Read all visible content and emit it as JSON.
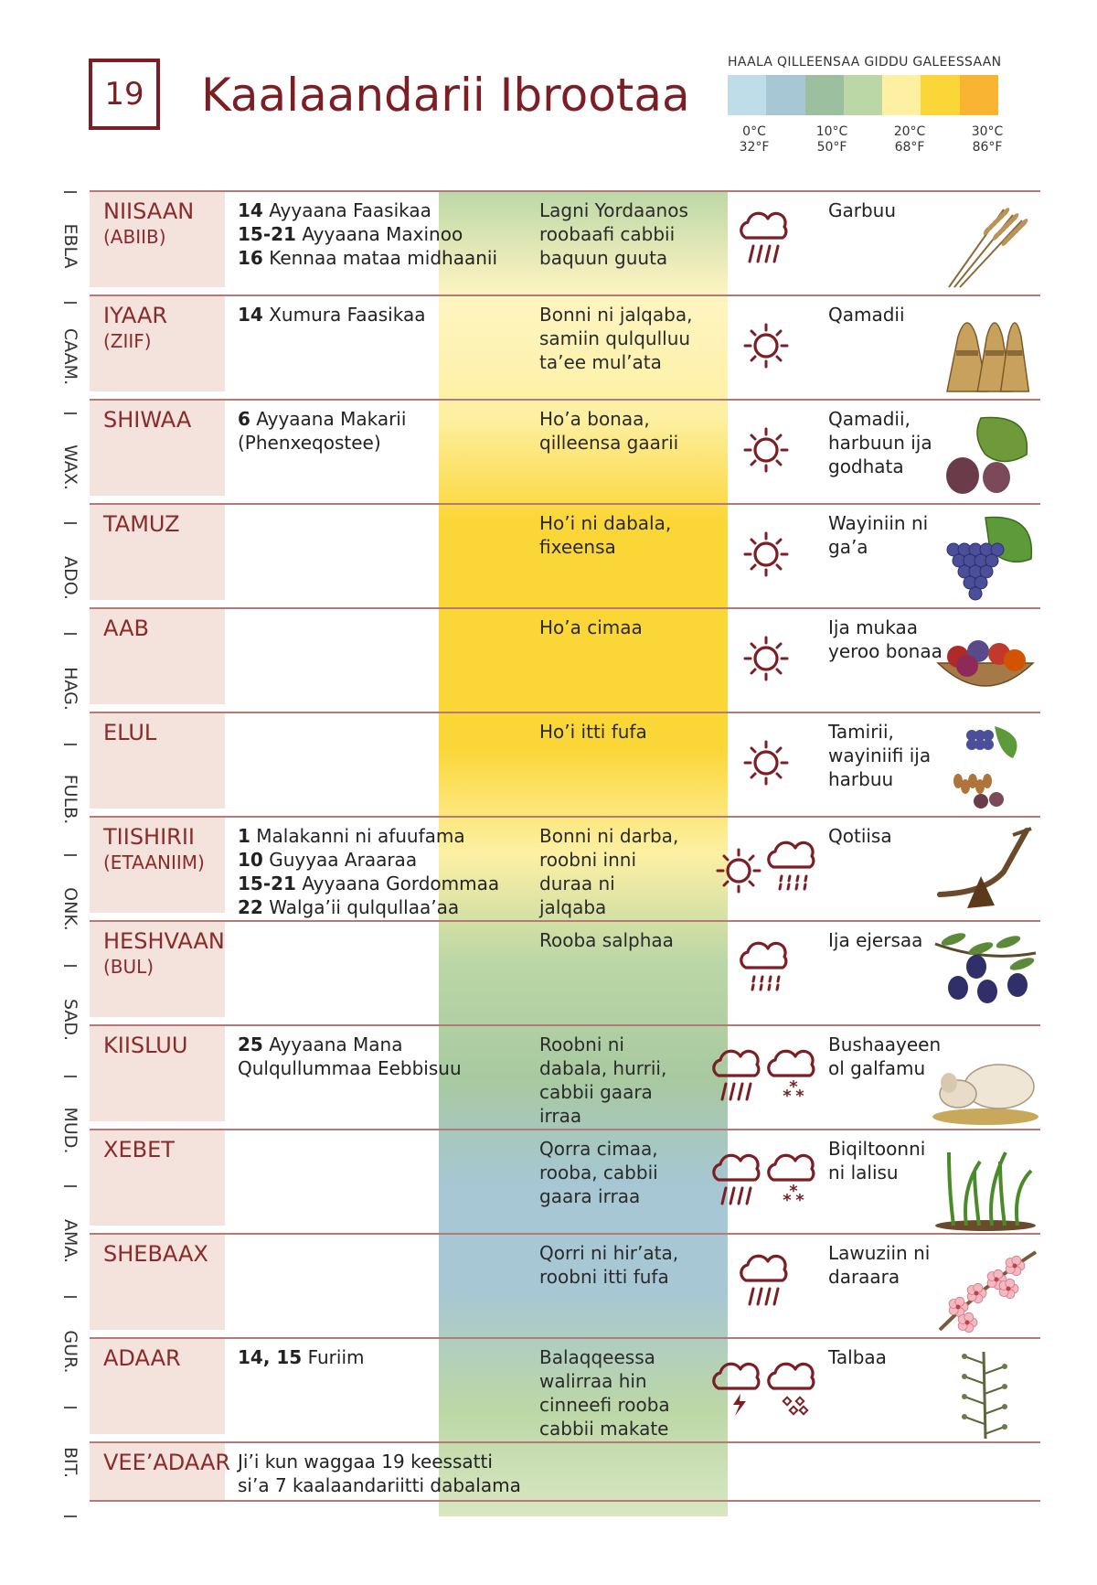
{
  "header": {
    "number": "19",
    "title": "Kaalaandarii Ibrootaa"
  },
  "legend": {
    "title": "HAALA QILLEENSAA GIDDU GALEESSAAN",
    "colors": [
      "#bfdde9",
      "#a6c7d3",
      "#9bbf9f",
      "#bcd7a6",
      "#fdf0a3",
      "#fbd637",
      "#f9b431"
    ],
    "labels": [
      {
        "c": "0°C",
        "f": "32°F"
      },
      {
        "c": "10°C",
        "f": "50°F"
      },
      {
        "c": "20°C",
        "f": "68°F"
      },
      {
        "c": "30°C",
        "f": "86°F"
      }
    ]
  },
  "side_labels": [
    "EBLA",
    "CAAM.",
    "WAX.",
    "ADO.",
    "HAG.",
    "FULB.",
    "ONK.",
    "SAD.",
    "MUD.",
    "AMA.",
    "GUR.",
    "BIT."
  ],
  "weather_gradient": [
    "#bcd7a6",
    "#fff5c2",
    "#fdf0a3",
    "#fbd637",
    "#fbd637",
    "#fbd637",
    "#fdf0a3",
    "#bcd7a6",
    "#a8c9a0",
    "#a6c7d3",
    "#a6c7d3",
    "#bcd7a6",
    "#d8e7c2"
  ],
  "months": [
    {
      "name": "NIISAAN",
      "alt": "(ABIIB)",
      "events": [
        {
          "day": "14",
          "text": "Ayyaana Faasikaa"
        },
        {
          "day": "15-21",
          "text": "Ayyaana Maxinoo"
        },
        {
          "day": "16",
          "text": "Kennaa mataa midhaanii"
        }
      ],
      "weather": "Lagni Yordaanos roobaafi cabbii baquun guuta",
      "icons": [
        "rain-icon"
      ],
      "crop": "Garbuu",
      "illustration": "barley-icon"
    },
    {
      "name": "IYAAR",
      "alt": "(ZIIF)",
      "events": [
        {
          "day": "14",
          "text": "Xumura Faasikaa"
        }
      ],
      "weather": "Bonni ni jalqaba, samiin qulqulluu ta’ee mul’ata",
      "icons": [
        "sun-icon"
      ],
      "crop": "Qamadii",
      "illustration": "wheat-sheaf-icon"
    },
    {
      "name": "SHIWAA",
      "alt": "",
      "events": [
        {
          "day": "6",
          "text": "Ayyaana Makarii (Phenxeqostee)"
        }
      ],
      "weather": "Ho’a bonaa, qilleensa gaarii",
      "icons": [
        "sun-icon"
      ],
      "crop": "Qamadii, harbuun ija godhata",
      "illustration": "fig-icon"
    },
    {
      "name": "TAMUZ",
      "alt": "",
      "events": [],
      "weather": "Ho’i ni dabala, fixeensa",
      "icons": [
        "sun-icon"
      ],
      "crop": "Wayiniin ni ga’a",
      "illustration": "grapes-icon"
    },
    {
      "name": "AAB",
      "alt": "",
      "events": [],
      "weather": "Ho’a cimaa",
      "icons": [
        "sun-icon"
      ],
      "crop": "Ija mukaa yeroo bonaa",
      "illustration": "fruit-basket-icon"
    },
    {
      "name": "ELUL",
      "alt": "",
      "events": [],
      "weather": "Ho’i itti fufa",
      "icons": [
        "sun-icon"
      ],
      "crop": "Tamirii, wayiniifi ija harbuu",
      "illustration": "dates-grapes-icon"
    },
    {
      "name": "TIISHIRII",
      "alt": "(ETAANIIM)",
      "events": [
        {
          "day": "1",
          "text": "Malakanni ni afuufama"
        },
        {
          "day": "10",
          "text": "Guyyaa Araaraa"
        },
        {
          "day": "15-21",
          "text": "Ayyaana Gordommaa"
        },
        {
          "day": "22",
          "text": "Walga’ii qulqullaa’aa"
        }
      ],
      "weather": "Bonni ni darba, roobni inni duraa ni jalqaba",
      "icons": [
        "sun-icon",
        "drizzle-icon"
      ],
      "crop": "Qotiisa",
      "illustration": "plough-icon"
    },
    {
      "name": "HESHVAAN",
      "alt": "(BUL)",
      "events": [],
      "weather": "Rooba salphaa",
      "icons": [
        "drizzle-icon"
      ],
      "crop": "Ija ejersaa",
      "illustration": "olive-icon"
    },
    {
      "name": "KIISLUU",
      "alt": "",
      "events": [
        {
          "day": "25",
          "text": "Ayyaana Mana Qulqullummaa Eebbisuu"
        }
      ],
      "weather": "Roobni ni dabala, hurrii, cabbii gaara irraa",
      "icons": [
        "rain-icon",
        "snow-icon"
      ],
      "crop": "Bushaayeen ol galfamu",
      "illustration": "sheep-icon"
    },
    {
      "name": "XEBET",
      "alt": "",
      "events": [],
      "weather": "Qorra cimaa, rooba, cabbii gaara irraa",
      "icons": [
        "rain-icon",
        "snow-icon"
      ],
      "crop": "Biqiltoonni ni lalisu",
      "illustration": "sprouts-icon"
    },
    {
      "name": "SHEBAAX",
      "alt": "",
      "events": [],
      "weather": "Qorri ni hir’ata, roobni itti fufa",
      "icons": [
        "rain-icon"
      ],
      "crop": "Lawuziin ni daraara",
      "illustration": "blossom-icon"
    },
    {
      "name": "ADAAR",
      "alt": "",
      "events": [
        {
          "day": "14, 15",
          "text": "Furiim"
        }
      ],
      "weather": "Balaqqeessa walirraa hin cinneefi rooba cabbii makate",
      "icons": [
        "thunderstorm-icon",
        "hail-icon"
      ],
      "crop": "Talbaa",
      "illustration": "flax-icon"
    },
    {
      "name": "VEE’ADAAR",
      "alt": "",
      "events": [
        {
          "day": "",
          "text": "Ji’i kun waggaa 19 keessatti si’a 7 kaalaandariitti dabalama"
        }
      ],
      "weather": "",
      "icons": [],
      "crop": "",
      "illustration": ""
    }
  ]
}
